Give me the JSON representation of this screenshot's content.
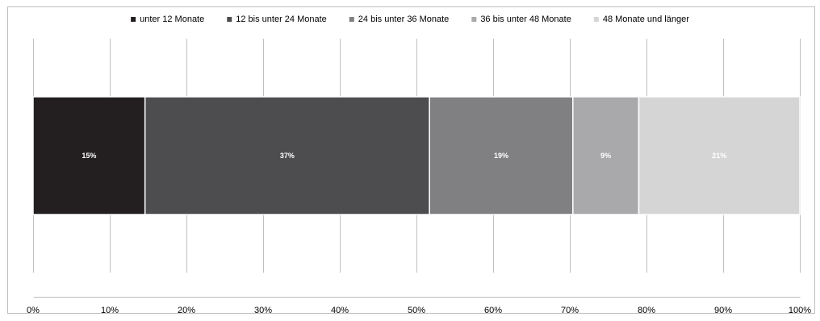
{
  "chart_data": {
    "type": "bar",
    "orientation": "horizontal",
    "stacked": true,
    "categories": [
      ""
    ],
    "series": [
      {
        "name": "unter 12 Monate",
        "values": [
          14.6
        ],
        "label": "15%",
        "color": "#231f20"
      },
      {
        "name": "12 bis unter 24 Monate",
        "values": [
          37.1
        ],
        "label": "37%",
        "color": "#4d4d4f"
      },
      {
        "name": "24 bis unter 36 Monate",
        "values": [
          18.7
        ],
        "label": "19%",
        "color": "#808083"
      },
      {
        "name": "36 bis unter 48 Monate",
        "values": [
          8.6
        ],
        "label": "9%",
        "color": "#a9a9ab"
      },
      {
        "name": "48 Monate und länger",
        "values": [
          21.0
        ],
        "label": "21%",
        "color": "#d5d5d6"
      }
    ],
    "xlim": [
      0,
      100
    ],
    "x_ticks": [
      "0%",
      "10%",
      "20%",
      "30%",
      "40%",
      "50%",
      "60%",
      "70%",
      "80%",
      "90%",
      "100%"
    ],
    "grid": true,
    "legend_position": "top",
    "title": "",
    "xlabel": "",
    "ylabel": ""
  }
}
